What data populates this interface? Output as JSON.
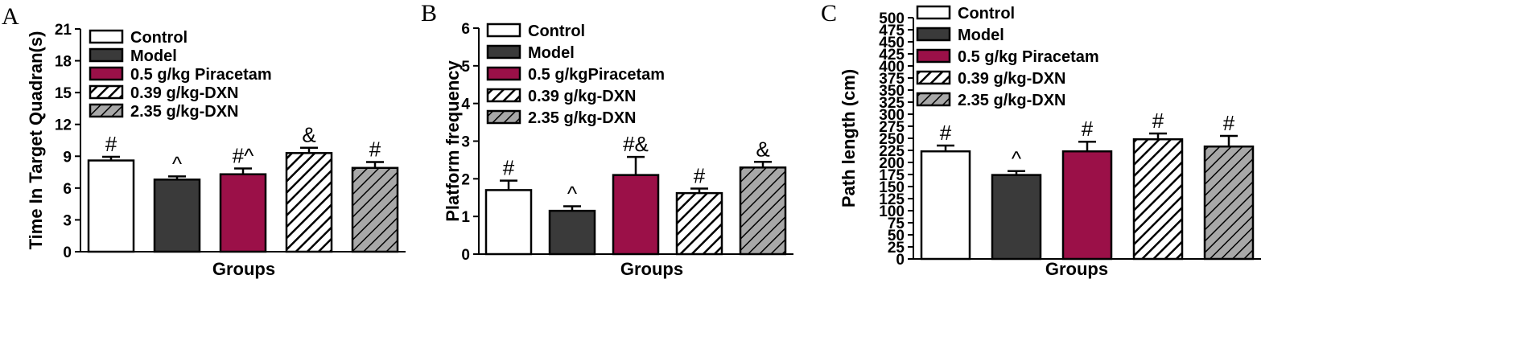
{
  "colors": {
    "control": "#ffffff",
    "model": "#3a3a3a",
    "piracetam": "#9b1048",
    "dxn_low": "hatch-white",
    "dxn_high": "hatch-gray"
  },
  "chart_data": [
    {
      "type": "bar",
      "panel": "A",
      "title": "",
      "xlabel": "Groups",
      "ylabel": "Time In Target Quadran(s)",
      "ylim": [
        0,
        21
      ],
      "yticks": [
        0,
        3,
        6,
        9,
        12,
        15,
        18,
        21
      ],
      "legend_position": "top-left",
      "legend": [
        "Control",
        "Model",
        "0.5 g/kg Piracetam",
        "0.39 g/kg-DXN",
        "2.35 g/kg-DXN"
      ],
      "categories": [
        "Control",
        "Model",
        "0.5 g/kg Piracetam",
        "0.39 g/kg-DXN",
        "2.35 g/kg-DXN"
      ],
      "values": [
        8.6,
        6.8,
        7.3,
        9.3,
        7.9
      ],
      "errors": [
        0.35,
        0.3,
        0.55,
        0.5,
        0.55
      ],
      "annotations": [
        "#",
        "^",
        "#^",
        "&",
        "#"
      ]
    },
    {
      "type": "bar",
      "panel": "B",
      "title": "",
      "xlabel": "Groups",
      "ylabel": "Platform frequency",
      "ylim": [
        0,
        6
      ],
      "yticks": [
        0,
        1,
        2,
        3,
        4,
        5,
        6
      ],
      "legend_position": "top-left",
      "legend": [
        "Control",
        "Model",
        "0.5 g/kgPiracetam",
        "0.39 g/kg-DXN",
        "2.35 g/kg-DXN"
      ],
      "categories": [
        "Control",
        "Model",
        "0.5 g/kgPiracetam",
        "0.39 g/kg-DXN",
        "2.35 g/kg-DXN"
      ],
      "values": [
        1.7,
        1.15,
        2.1,
        1.62,
        2.3
      ],
      "errors": [
        0.25,
        0.12,
        0.48,
        0.12,
        0.15
      ],
      "annotations": [
        "#",
        "^",
        "#&",
        "#",
        "&"
      ]
    },
    {
      "type": "bar",
      "panel": "C",
      "title": "",
      "xlabel": "Groups",
      "ylabel": "Path length (cm)",
      "ylim": [
        0,
        500
      ],
      "yticks": [
        0,
        25,
        50,
        75,
        100,
        125,
        150,
        175,
        200,
        225,
        250,
        275,
        300,
        325,
        350,
        375,
        400,
        425,
        450,
        475,
        500
      ],
      "legend_position": "top-left",
      "legend": [
        "Control",
        "Model",
        "0.5 g/kg Piracetam",
        "0.39 g/kg-DXN",
        "2.35 g/kg-DXN"
      ],
      "categories": [
        "Control",
        "Model",
        "0.5 g/kg Piracetam",
        "0.39 g/kg-DXN",
        "2.35 g/kg-DXN"
      ],
      "values": [
        223,
        174,
        223,
        248,
        233
      ],
      "errors": [
        12,
        8,
        20,
        12,
        22
      ],
      "annotations": [
        "#",
        "^",
        "#",
        "#",
        "#"
      ]
    }
  ]
}
